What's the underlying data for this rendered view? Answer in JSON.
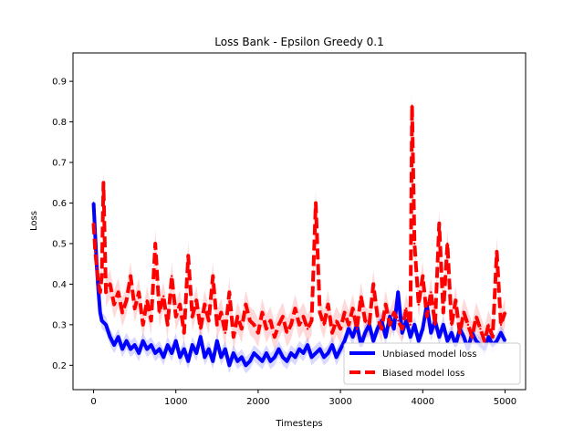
{
  "chart_data": {
    "type": "line",
    "title": "Loss Bank - Epsilon Greedy 0.1",
    "xlabel": "Timesteps",
    "ylabel": "Loss",
    "xlim": [
      -250,
      5250
    ],
    "ylim": [
      0.14,
      0.97
    ],
    "xticks": [
      0,
      1000,
      2000,
      3000,
      4000,
      5000
    ],
    "yticks": [
      0.2,
      0.3,
      0.4,
      0.5,
      0.6,
      0.7,
      0.8,
      0.9
    ],
    "grid": false,
    "legend_position": "lower right",
    "series": [
      {
        "name": "Unbiased model loss",
        "color": "#0000ff",
        "line_style": "solid",
        "band_color": "#0000ff",
        "x": [
          0,
          20,
          40,
          60,
          80,
          100,
          150,
          200,
          250,
          300,
          350,
          400,
          450,
          500,
          550,
          600,
          650,
          700,
          750,
          800,
          850,
          900,
          950,
          1000,
          1050,
          1100,
          1150,
          1200,
          1250,
          1300,
          1350,
          1400,
          1450,
          1500,
          1550,
          1600,
          1650,
          1700,
          1750,
          1800,
          1850,
          1900,
          1950,
          2000,
          2050,
          2100,
          2150,
          2200,
          2250,
          2300,
          2350,
          2400,
          2450,
          2500,
          2550,
          2600,
          2650,
          2700,
          2750,
          2800,
          2850,
          2900,
          2950,
          3000,
          3050,
          3100,
          3150,
          3200,
          3250,
          3300,
          3350,
          3400,
          3450,
          3500,
          3550,
          3600,
          3650,
          3700,
          3750,
          3800,
          3850,
          3900,
          3950,
          4000,
          4050,
          4100,
          4150,
          4200,
          4250,
          4300,
          4350,
          4400,
          4450,
          4500,
          4550,
          4600,
          4650,
          4700,
          4750,
          4800,
          4850,
          4900,
          4950,
          5000
        ],
        "y": [
          0.6,
          0.52,
          0.44,
          0.38,
          0.33,
          0.31,
          0.3,
          0.27,
          0.25,
          0.27,
          0.24,
          0.26,
          0.24,
          0.25,
          0.23,
          0.26,
          0.24,
          0.25,
          0.23,
          0.24,
          0.22,
          0.25,
          0.23,
          0.26,
          0.22,
          0.24,
          0.21,
          0.25,
          0.23,
          0.27,
          0.22,
          0.24,
          0.21,
          0.26,
          0.22,
          0.24,
          0.2,
          0.23,
          0.21,
          0.22,
          0.2,
          0.21,
          0.23,
          0.22,
          0.21,
          0.23,
          0.21,
          0.22,
          0.24,
          0.22,
          0.21,
          0.23,
          0.22,
          0.24,
          0.23,
          0.25,
          0.22,
          0.23,
          0.24,
          0.22,
          0.23,
          0.25,
          0.22,
          0.24,
          0.26,
          0.29,
          0.27,
          0.3,
          0.25,
          0.28,
          0.3,
          0.26,
          0.29,
          0.31,
          0.27,
          0.32,
          0.29,
          0.38,
          0.28,
          0.31,
          0.27,
          0.3,
          0.26,
          0.29,
          0.35,
          0.28,
          0.31,
          0.27,
          0.3,
          0.26,
          0.28,
          0.25,
          0.29,
          0.27,
          0.24,
          0.28,
          0.26,
          0.25,
          0.24,
          0.27,
          0.25,
          0.26,
          0.28,
          0.26
        ],
        "band_half_width": 0.02
      },
      {
        "name": "Biased model loss",
        "color": "#ff0000",
        "line_style": "dashed",
        "band_color": "#ff0000",
        "x": [
          0,
          20,
          40,
          60,
          80,
          100,
          120,
          150,
          200,
          250,
          300,
          350,
          400,
          450,
          500,
          550,
          600,
          650,
          700,
          750,
          800,
          850,
          900,
          950,
          1000,
          1050,
          1100,
          1150,
          1200,
          1250,
          1300,
          1350,
          1400,
          1450,
          1500,
          1550,
          1600,
          1650,
          1700,
          1750,
          1800,
          1850,
          1900,
          1950,
          2000,
          2050,
          2100,
          2150,
          2200,
          2250,
          2300,
          2350,
          2400,
          2450,
          2500,
          2550,
          2600,
          2650,
          2700,
          2750,
          2800,
          2850,
          2900,
          2950,
          3000,
          3050,
          3100,
          3150,
          3200,
          3250,
          3300,
          3350,
          3400,
          3450,
          3500,
          3550,
          3600,
          3650,
          3700,
          3750,
          3800,
          3850,
          3870,
          3900,
          3950,
          4000,
          4050,
          4100,
          4150,
          4200,
          4250,
          4300,
          4350,
          4400,
          4450,
          4500,
          4550,
          4600,
          4650,
          4700,
          4750,
          4800,
          4850,
          4900,
          4950,
          5000
        ],
        "y": [
          0.55,
          0.48,
          0.44,
          0.4,
          0.38,
          0.42,
          0.65,
          0.38,
          0.4,
          0.35,
          0.38,
          0.33,
          0.36,
          0.42,
          0.34,
          0.38,
          0.3,
          0.36,
          0.31,
          0.5,
          0.33,
          0.37,
          0.3,
          0.42,
          0.32,
          0.35,
          0.28,
          0.47,
          0.32,
          0.36,
          0.29,
          0.35,
          0.31,
          0.42,
          0.3,
          0.33,
          0.28,
          0.38,
          0.27,
          0.32,
          0.29,
          0.35,
          0.31,
          0.3,
          0.28,
          0.33,
          0.29,
          0.31,
          0.27,
          0.3,
          0.32,
          0.28,
          0.3,
          0.34,
          0.3,
          0.32,
          0.29,
          0.31,
          0.6,
          0.33,
          0.3,
          0.35,
          0.28,
          0.31,
          0.29,
          0.33,
          0.3,
          0.34,
          0.29,
          0.37,
          0.31,
          0.3,
          0.4,
          0.32,
          0.29,
          0.35,
          0.3,
          0.33,
          0.31,
          0.29,
          0.34,
          0.3,
          0.84,
          0.5,
          0.35,
          0.42,
          0.32,
          0.38,
          0.3,
          0.55,
          0.33,
          0.5,
          0.3,
          0.36,
          0.28,
          0.33,
          0.3,
          0.27,
          0.32,
          0.29,
          0.26,
          0.3,
          0.27,
          0.48,
          0.3,
          0.33
        ],
        "band_half_width": 0.035
      }
    ]
  }
}
